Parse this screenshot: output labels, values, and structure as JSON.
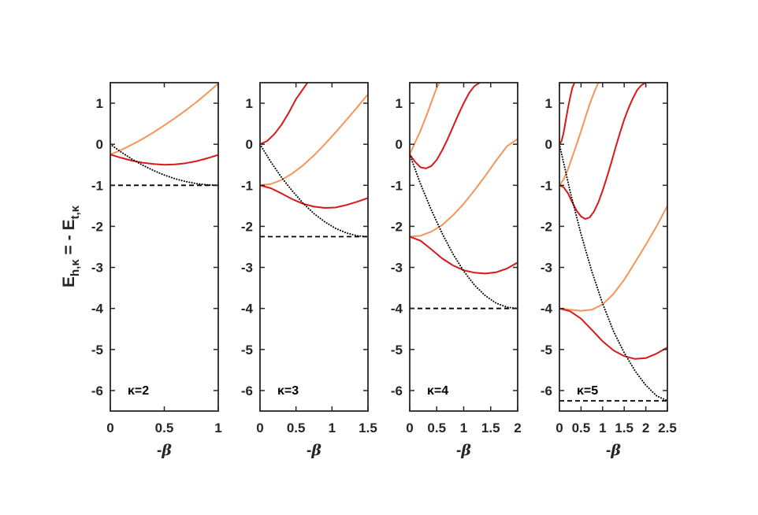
{
  "figure": {
    "ylabel_main": "E",
    "ylabel_sub1": "h,κ",
    "ylabel_mid": " = - E",
    "ylabel_sub2": "t,κ"
  },
  "colors": {
    "red": "#d7191c",
    "orange": "#f4955a",
    "dotted": "#000000",
    "dashed": "#000000",
    "axis": "#262626"
  },
  "chart_data": [
    {
      "type": "line",
      "panel_label": "κ=2",
      "xlabel": "-β",
      "xlim": [
        0,
        1
      ],
      "ylim": [
        -6.5,
        1.5
      ],
      "xticks": [
        0,
        0.5,
        1
      ],
      "xtick_labels": [
        "0",
        "0.5",
        "1"
      ],
      "yticks": [
        1,
        0,
        -1,
        -2,
        -3,
        -4,
        -5,
        -6
      ],
      "ytick_labels": [
        "1",
        "0",
        "-1",
        "-2",
        "-3",
        "-4",
        "-5",
        "-6"
      ],
      "series": [
        {
          "style": "orange",
          "x": [
            0,
            0.1,
            0.2,
            0.3,
            0.4,
            0.5,
            0.6,
            0.7,
            0.8,
            0.9,
            1.0
          ],
          "y": [
            -0.25,
            -0.14,
            -0.01,
            0.13,
            0.29,
            0.46,
            0.64,
            0.83,
            1.03,
            1.25,
            1.48
          ]
        },
        {
          "style": "red",
          "x": [
            0,
            0.1,
            0.2,
            0.3,
            0.4,
            0.5,
            0.6,
            0.7,
            0.8,
            0.9,
            1.0
          ],
          "y": [
            -0.25,
            -0.33,
            -0.4,
            -0.45,
            -0.48,
            -0.5,
            -0.49,
            -0.46,
            -0.41,
            -0.34,
            -0.26
          ]
        },
        {
          "style": "dotted",
          "x": [
            0,
            0.1,
            0.2,
            0.3,
            0.4,
            0.5,
            0.6,
            0.7,
            0.8,
            0.9,
            1.0
          ],
          "y": [
            0,
            -0.19,
            -0.36,
            -0.51,
            -0.64,
            -0.75,
            -0.84,
            -0.91,
            -0.96,
            -0.99,
            -1.0
          ]
        },
        {
          "style": "dashed",
          "x": [
            0,
            1.0
          ],
          "y": [
            -1,
            -1
          ]
        }
      ]
    },
    {
      "type": "line",
      "panel_label": "κ=3",
      "xlabel": "-β",
      "xlim": [
        0,
        1.5
      ],
      "ylim": [
        -6.5,
        1.5
      ],
      "xticks": [
        0,
        0.5,
        1,
        1.5
      ],
      "xtick_labels": [
        "0",
        "0.5",
        "1",
        "1.5"
      ],
      "yticks": [
        1,
        0,
        -1,
        -2,
        -3,
        -4,
        -5,
        -6
      ],
      "ytick_labels": [
        "1",
        "0",
        "-1",
        "-2",
        "-3",
        "-4",
        "-5",
        "-6"
      ],
      "series": [
        {
          "style": "red",
          "x": [
            0,
            0.1,
            0.2,
            0.3,
            0.4,
            0.5,
            0.6,
            0.7
          ],
          "y": [
            0,
            0.08,
            0.25,
            0.48,
            0.77,
            1.1,
            1.35,
            1.6
          ]
        },
        {
          "style": "orange",
          "x": [
            0,
            0.15,
            0.3,
            0.45,
            0.6,
            0.75,
            0.9,
            1.05,
            1.2,
            1.35,
            1.5
          ],
          "y": [
            -1.0,
            -0.97,
            -0.87,
            -0.71,
            -0.51,
            -0.27,
            0.0,
            0.29,
            0.59,
            0.9,
            1.22
          ]
        },
        {
          "style": "red",
          "x": [
            0,
            0.15,
            0.3,
            0.45,
            0.6,
            0.75,
            0.9,
            1.05,
            1.2,
            1.35,
            1.5
          ],
          "y": [
            -1.0,
            -1.07,
            -1.2,
            -1.34,
            -1.45,
            -1.52,
            -1.55,
            -1.54,
            -1.48,
            -1.4,
            -1.31
          ]
        },
        {
          "style": "dotted",
          "x": [
            0,
            0.15,
            0.3,
            0.45,
            0.6,
            0.75,
            0.9,
            1.05,
            1.2,
            1.35,
            1.5
          ],
          "y": [
            0,
            -0.43,
            -0.81,
            -1.14,
            -1.44,
            -1.69,
            -1.89,
            -2.05,
            -2.16,
            -2.23,
            -2.25
          ]
        },
        {
          "style": "dashed",
          "x": [
            0,
            1.5
          ],
          "y": [
            -2.25,
            -2.25
          ]
        }
      ]
    },
    {
      "type": "line",
      "panel_label": "κ=4",
      "xlabel": "-β",
      "xlim": [
        0,
        2
      ],
      "ylim": [
        -6.5,
        1.5
      ],
      "xticks": [
        0,
        0.5,
        1,
        1.5,
        2
      ],
      "xtick_labels": [
        "0",
        "0.5",
        "1",
        "1.5",
        "2"
      ],
      "yticks": [
        1,
        0,
        -1,
        -2,
        -3,
        -4,
        -5,
        -6
      ],
      "ytick_labels": [
        "1",
        "0",
        "-1",
        "-2",
        "-3",
        "-4",
        "-5",
        "-6"
      ],
      "series": [
        {
          "style": "orange",
          "x": [
            0,
            0.05,
            0.1,
            0.15,
            0.2,
            0.25,
            0.3,
            0.35,
            0.4,
            0.45,
            0.5,
            0.55
          ],
          "y": [
            -0.25,
            -0.1,
            0.05,
            0.19,
            0.33,
            0.5,
            0.66,
            0.84,
            1.02,
            1.2,
            1.38,
            1.5
          ]
        },
        {
          "style": "red",
          "x": [
            0,
            0.1,
            0.2,
            0.3,
            0.4,
            0.5,
            0.6,
            0.7,
            0.8,
            0.9,
            1.0,
            1.1,
            1.2,
            1.3
          ],
          "y": [
            -0.25,
            -0.43,
            -0.56,
            -0.59,
            -0.53,
            -0.38,
            -0.15,
            0.12,
            0.42,
            0.72,
            1.0,
            1.25,
            1.42,
            1.5
          ]
        },
        {
          "style": "orange",
          "x": [
            0,
            0.2,
            0.4,
            0.6,
            0.8,
            1.0,
            1.2,
            1.4,
            1.6,
            1.8,
            2.0
          ],
          "y": [
            -2.25,
            -2.23,
            -2.13,
            -1.97,
            -1.73,
            -1.45,
            -1.12,
            -0.77,
            -0.4,
            -0.05,
            0.13
          ]
        },
        {
          "style": "red",
          "x": [
            0,
            0.2,
            0.4,
            0.6,
            0.8,
            1.0,
            1.2,
            1.4,
            1.6,
            1.8,
            2.0
          ],
          "y": [
            -2.25,
            -2.35,
            -2.56,
            -2.78,
            -2.95,
            -3.07,
            -3.13,
            -3.15,
            -3.12,
            -3.03,
            -2.88
          ]
        },
        {
          "style": "dotted",
          "x": [
            0,
            0.2,
            0.4,
            0.6,
            0.8,
            1.0,
            1.2,
            1.4,
            1.6,
            1.8,
            2.0
          ],
          "y": [
            -0.25,
            -0.97,
            -1.6,
            -2.17,
            -2.67,
            -3.09,
            -3.43,
            -3.69,
            -3.87,
            -3.97,
            -4.0
          ]
        },
        {
          "style": "dashed",
          "x": [
            0,
            2.0
          ],
          "y": [
            -4,
            -4
          ]
        }
      ]
    },
    {
      "type": "line",
      "panel_label": "κ=5",
      "xlabel": "-β",
      "xlim": [
        0,
        2.5
      ],
      "ylim": [
        -6.5,
        1.5
      ],
      "xticks": [
        0,
        0.5,
        1,
        1.5,
        2,
        2.5
      ],
      "xtick_labels": [
        "0",
        "0.5",
        "1",
        "1.5",
        "2",
        "2.5"
      ],
      "yticks": [
        1,
        0,
        -1,
        -2,
        -3,
        -4,
        -5,
        -6
      ],
      "ytick_labels": [
        "1",
        "0",
        "-1",
        "-2",
        "-3",
        "-4",
        "-5",
        "-6"
      ],
      "series": [
        {
          "style": "red",
          "x": [
            0,
            0.05,
            0.1,
            0.15,
            0.2,
            0.25,
            0.3,
            0.35
          ],
          "y": [
            0,
            0.08,
            0.3,
            0.6,
            0.9,
            1.15,
            1.38,
            1.5
          ]
        },
        {
          "style": "orange",
          "x": [
            0,
            0.1,
            0.2,
            0.3,
            0.4,
            0.5,
            0.6,
            0.7,
            0.8,
            0.9
          ],
          "y": [
            -1.0,
            -0.85,
            -0.6,
            -0.3,
            0.0,
            0.32,
            0.65,
            0.98,
            1.25,
            1.5
          ]
        },
        {
          "style": "red",
          "x": [
            0,
            0.1,
            0.2,
            0.3,
            0.4,
            0.5,
            0.6,
            0.7,
            0.8,
            0.9,
            1.0,
            1.1,
            1.2,
            1.3,
            1.4,
            1.5,
            1.6,
            1.7,
            1.8,
            1.9,
            2.0
          ],
          "y": [
            -1.0,
            -1.05,
            -1.2,
            -1.42,
            -1.62,
            -1.76,
            -1.82,
            -1.78,
            -1.64,
            -1.42,
            -1.13,
            -0.8,
            -0.45,
            -0.08,
            0.27,
            0.6,
            0.88,
            1.12,
            1.32,
            1.44,
            1.5
          ]
        },
        {
          "style": "orange",
          "x": [
            0,
            0.25,
            0.5,
            0.75,
            1.0,
            1.25,
            1.5,
            1.75,
            2.0,
            2.25,
            2.5
          ],
          "y": [
            -4.0,
            -4.03,
            -4.06,
            -4.03,
            -3.9,
            -3.65,
            -3.3,
            -2.88,
            -2.45,
            -2.0,
            -1.5
          ]
        },
        {
          "style": "red",
          "x": [
            0,
            0.25,
            0.5,
            0.75,
            1.0,
            1.25,
            1.5,
            1.75,
            2.0,
            2.25,
            2.5
          ],
          "y": [
            -4.0,
            -4.07,
            -4.25,
            -4.52,
            -4.8,
            -5.02,
            -5.16,
            -5.23,
            -5.21,
            -5.1,
            -4.95
          ]
        },
        {
          "style": "dotted",
          "x": [
            0,
            0.25,
            0.5,
            0.75,
            1.0,
            1.25,
            1.5,
            1.75,
            2.0,
            2.25,
            2.5
          ],
          "y": [
            0,
            -1.16,
            -2.19,
            -3.1,
            -3.88,
            -4.55,
            -5.08,
            -5.52,
            -5.87,
            -6.13,
            -6.25
          ]
        },
        {
          "style": "dashed",
          "x": [
            0,
            2.5
          ],
          "y": [
            -6.25,
            -6.25
          ]
        }
      ]
    }
  ]
}
